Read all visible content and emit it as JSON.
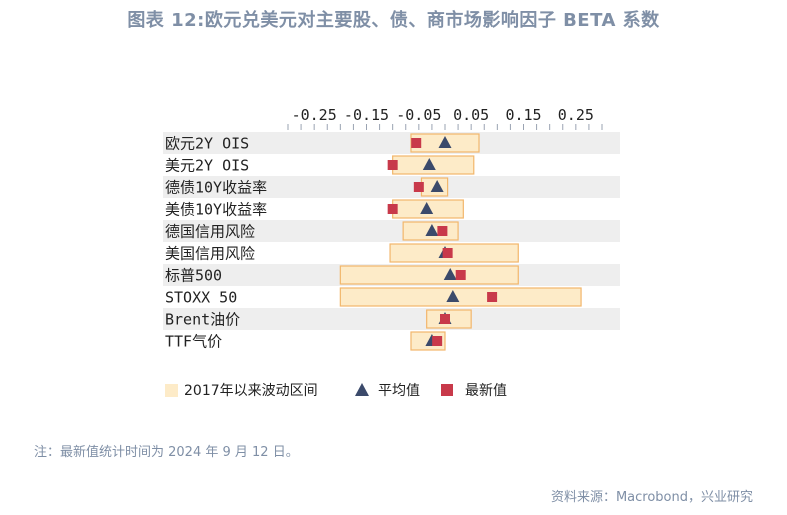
{
  "title": "图表 12:欧元兑美元对主要股、债、商市场影响因子 BETA 系数",
  "note": "注：最新值统计时间为 2024 年 9 月 12 日。",
  "source": "资料来源：Macrobond，兴业研究",
  "colors": {
    "range_fill": "#fdebc8",
    "range_stroke": "#f2b66b",
    "mean": "#3b4a6b",
    "latest": "#c8394a",
    "stripe": "#eeeeee",
    "text_muted": "#7f8fa6"
  },
  "chart_data": {
    "type": "range-dot",
    "x_ticks": [
      -0.25,
      -0.15,
      -0.05,
      0.05,
      0.15,
      0.25
    ],
    "x_tick_labels": [
      "-0.25",
      "-0.15",
      "-0.05",
      "0.05",
      "0.15",
      "0.25"
    ],
    "xlim": [
      -0.3,
      0.3
    ],
    "axis_position": "top",
    "legend": [
      "2017年以来波动区间",
      "平均值",
      "最新值"
    ],
    "legend_position": "bottom-left",
    "categories": [
      "欧元2Y OIS",
      "美元2Y OIS",
      "德债10Y收益率",
      "美债10Y收益率",
      "德国信用风险",
      "美国信用风险",
      "标普500",
      "STOXX 50",
      "Brent油价",
      "TTF气价"
    ],
    "range_min": [
      -0.065,
      -0.1,
      -0.045,
      -0.1,
      -0.08,
      -0.105,
      -0.2,
      -0.2,
      -0.035,
      -0.065
    ],
    "range_max": [
      0.065,
      0.055,
      0.005,
      0.035,
      0.025,
      0.14,
      0.14,
      0.26,
      0.05,
      0.0
    ],
    "mean": [
      0.0,
      -0.03,
      -0.015,
      -0.035,
      -0.025,
      0.0,
      0.01,
      0.015,
      0.0,
      -0.025
    ],
    "latest": [
      -0.055,
      -0.1,
      -0.05,
      -0.1,
      -0.005,
      0.005,
      0.03,
      0.09,
      0.0,
      -0.015
    ]
  }
}
